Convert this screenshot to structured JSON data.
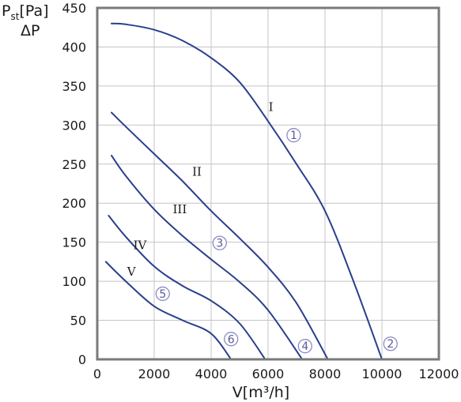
{
  "chart_data": {
    "type": "line",
    "ylabel_main": "P",
    "ylabel_sub": "st",
    "ylabel_unit": "[Pa]",
    "ylabel_line2": "ΔP",
    "xlabel": "V[m³/h]",
    "xlim": [
      0,
      12000
    ],
    "ylim": [
      0,
      450
    ],
    "x_ticks": [
      0,
      2000,
      4000,
      6000,
      8000,
      10000,
      12000
    ],
    "y_ticks": [
      0,
      50,
      100,
      150,
      200,
      250,
      300,
      350,
      400,
      450
    ],
    "grid": true,
    "colors": {
      "curve": "#2b3f8c",
      "grid": "#c4c4c4",
      "frame": "#7a7a7a",
      "marker": "#8a8ac8"
    },
    "series": [
      {
        "name": "I",
        "x": [
          500,
          1000,
          2000,
          3000,
          4000,
          5000,
          6000,
          7000,
          8000,
          9000,
          10000
        ],
        "y": [
          430,
          429,
          422,
          408,
          386,
          355,
          305,
          250,
          190,
          100,
          0
        ]
      },
      {
        "name": "II",
        "x": [
          500,
          1000,
          2000,
          3000,
          4000,
          5000,
          6000,
          7000,
          8100
        ],
        "y": [
          316,
          298,
          263,
          228,
          190,
          155,
          118,
          72,
          0
        ]
      },
      {
        "name": "III",
        "x": [
          500,
          1000,
          2000,
          3000,
          4000,
          5000,
          6000,
          7200
        ],
        "y": [
          261,
          235,
          192,
          158,
          128,
          99,
          63,
          0
        ]
      },
      {
        "name": "IV",
        "x": [
          400,
          1000,
          2000,
          3000,
          4000,
          5000,
          5900
        ],
        "y": [
          184,
          157,
          119,
          94,
          75,
          46,
          0
        ]
      },
      {
        "name": "V",
        "x": [
          300,
          1000,
          2000,
          3000,
          4000,
          4700
        ],
        "y": [
          125,
          100,
          68,
          50,
          33,
          0
        ]
      }
    ],
    "markers": [
      {
        "label": "①",
        "x": 6900,
        "y": 287
      },
      {
        "label": "②",
        "x": 10300,
        "y": 20
      },
      {
        "label": "③",
        "x": 4300,
        "y": 149
      },
      {
        "label": "④",
        "x": 7300,
        "y": 17
      },
      {
        "label": "⑤",
        "x": 2300,
        "y": 84
      },
      {
        "label": "⑥",
        "x": 4700,
        "y": 26
      }
    ],
    "curve_labels": [
      {
        "label": "I",
        "x": 6100,
        "y": 318
      },
      {
        "label": "II",
        "x": 3500,
        "y": 235
      },
      {
        "label": "III",
        "x": 2900,
        "y": 187
      },
      {
        "label": "IV",
        "x": 1500,
        "y": 141
      },
      {
        "label": "V",
        "x": 1200,
        "y": 107
      }
    ]
  }
}
